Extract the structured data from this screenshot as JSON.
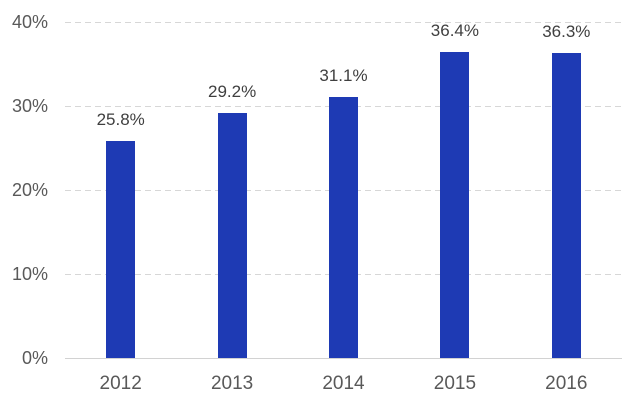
{
  "chart_data": {
    "type": "bar",
    "title": "",
    "xlabel": "",
    "ylabel": "",
    "categories": [
      "2012",
      "2013",
      "2014",
      "2015",
      "2016"
    ],
    "values": [
      25.8,
      29.2,
      31.1,
      36.4,
      36.3
    ],
    "value_labels": [
      "25.8%",
      "29.2%",
      "31.1%",
      "36.4%",
      "36.3%"
    ],
    "yticks": [
      0,
      10,
      20,
      30,
      40
    ],
    "ytick_labels": [
      "0%",
      "10%",
      "20%",
      "30%",
      "40%"
    ],
    "ylim": [
      0,
      40
    ],
    "grid": "horizontal-dashed",
    "legend": "none",
    "colors": {
      "bar": "#1e3ab4",
      "gridline": "#d7d7d7",
      "axis_line": "#d2d2d2",
      "tick_label": "#595959",
      "value_label": "#3f3f3f",
      "background": "#ffffff"
    }
  }
}
